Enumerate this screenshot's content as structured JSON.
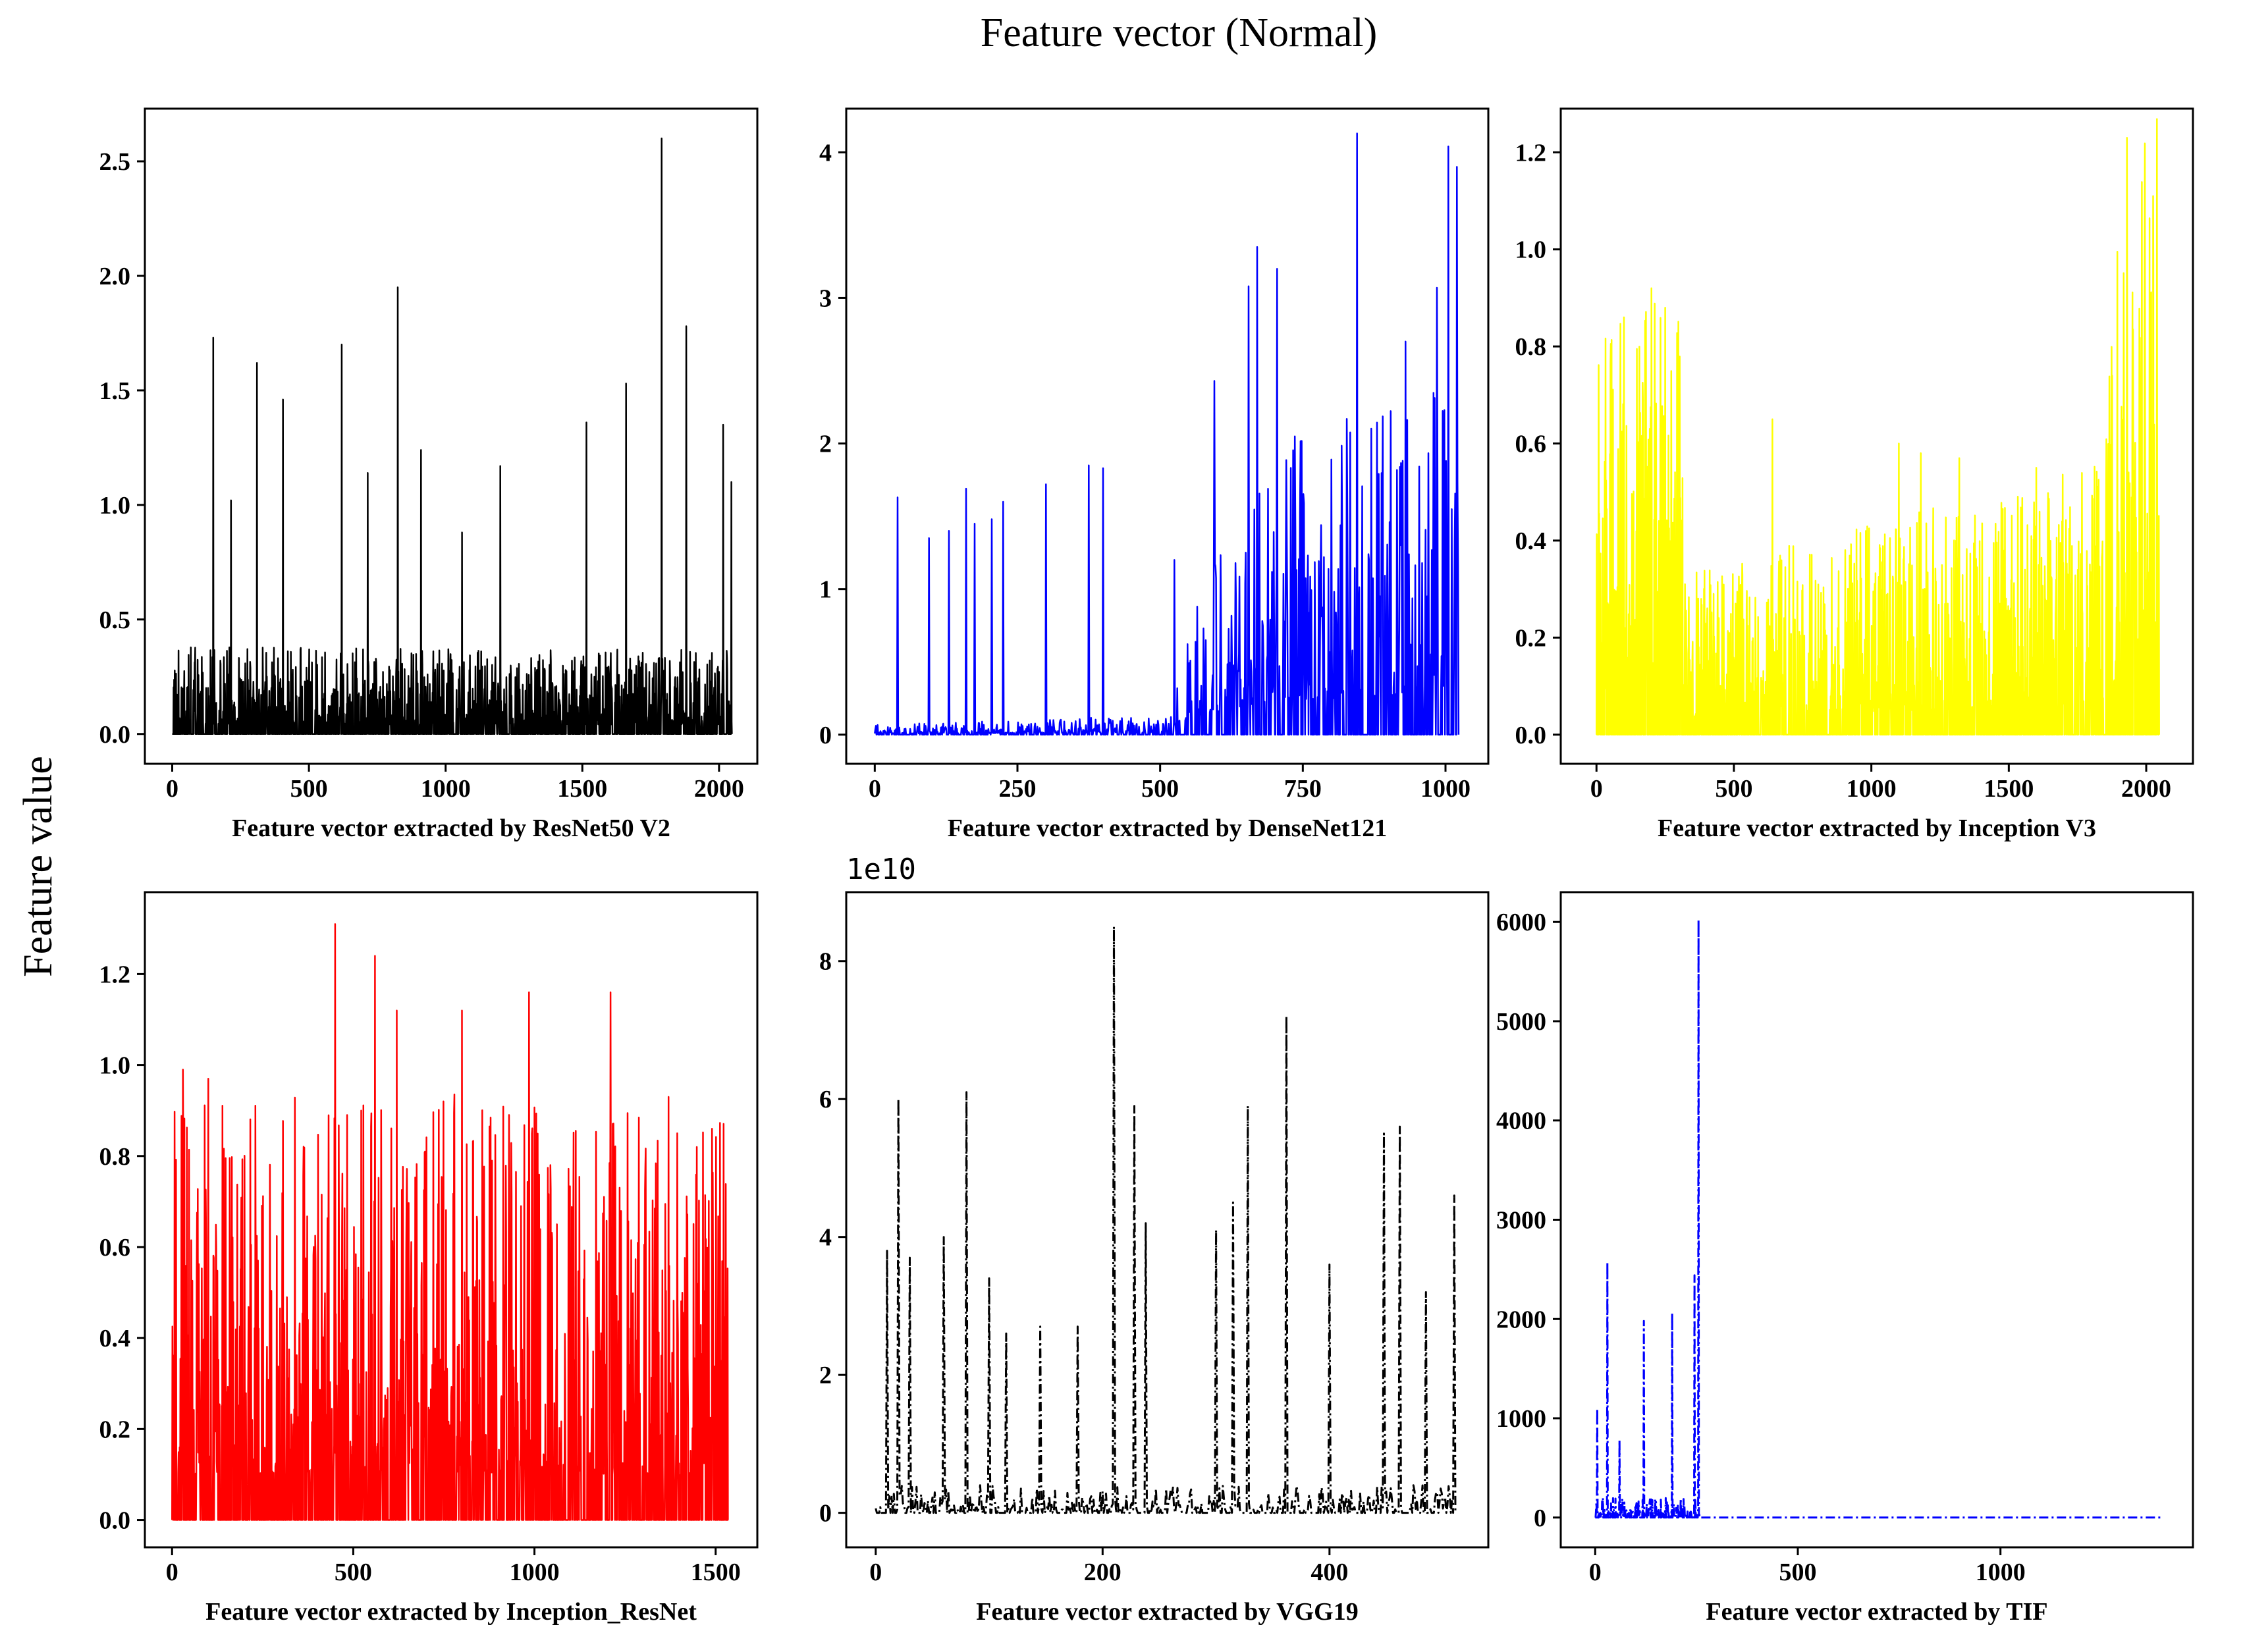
{
  "figure": {
    "title": "Feature vector (Normal)",
    "ylabel": "Feature value"
  },
  "chart_data": [
    {
      "type": "line",
      "id": "resnet50v2",
      "color": "#000000",
      "linestyle": "solid",
      "xlabel": "Feature vector extracted by ResNet50 V2",
      "n": 2048,
      "xlim": [
        -100,
        2140
      ],
      "ylim": [
        -0.13,
        2.73
      ],
      "xticks": [
        0,
        500,
        1000,
        1500,
        2000
      ],
      "xtick_labels": [
        "0",
        "500",
        "1000",
        "1500",
        "2000"
      ],
      "yticks": [
        0.0,
        0.5,
        1.0,
        1.5,
        2.0,
        2.5
      ],
      "ytick_labels": [
        "0.0",
        "0.5",
        "1.0",
        "1.5",
        "2.0",
        "2.5"
      ],
      "base": [
        {
          "x": 0,
          "v": 0.28
        },
        {
          "x": 1000,
          "v": 0.28
        },
        {
          "x": 2048,
          "v": 0.28
        }
      ],
      "peaks": [
        {
          "x": 150,
          "y": 1.73
        },
        {
          "x": 215,
          "y": 1.02
        },
        {
          "x": 310,
          "y": 1.62
        },
        {
          "x": 405,
          "y": 1.46
        },
        {
          "x": 620,
          "y": 1.7
        },
        {
          "x": 715,
          "y": 1.14
        },
        {
          "x": 825,
          "y": 1.95
        },
        {
          "x": 910,
          "y": 1.24
        },
        {
          "x": 1060,
          "y": 0.88
        },
        {
          "x": 1200,
          "y": 1.17
        },
        {
          "x": 1515,
          "y": 1.36
        },
        {
          "x": 1660,
          "y": 1.53
        },
        {
          "x": 1790,
          "y": 2.6
        },
        {
          "x": 1880,
          "y": 1.78
        },
        {
          "x": 2015,
          "y": 1.35
        },
        {
          "x": 2045,
          "y": 1.1
        }
      ]
    },
    {
      "type": "line",
      "id": "densenet121",
      "color": "#0000ff",
      "linestyle": "solid",
      "xlabel": "Feature vector extracted by DenseNet121",
      "n": 1024,
      "xlim": [
        -50,
        1075
      ],
      "ylim": [
        -0.2,
        4.3
      ],
      "xticks": [
        0,
        250,
        500,
        750,
        1000
      ],
      "xtick_labels": [
        "0",
        "250",
        "500",
        "750",
        "1000"
      ],
      "yticks": [
        0,
        1,
        2,
        3,
        4
      ],
      "ytick_labels": [
        "0",
        "1",
        "2",
        "3",
        "4"
      ],
      "base": [
        {
          "x": 0,
          "v": 0.05
        },
        {
          "x": 520,
          "v": 0.1
        },
        {
          "x": 570,
          "v": 0.9
        },
        {
          "x": 700,
          "v": 1.6
        },
        {
          "x": 1024,
          "v": 1.8
        }
      ],
      "peaks": [
        {
          "x": 40,
          "y": 1.63
        },
        {
          "x": 95,
          "y": 1.35
        },
        {
          "x": 130,
          "y": 1.4
        },
        {
          "x": 160,
          "y": 1.69
        },
        {
          "x": 175,
          "y": 1.45
        },
        {
          "x": 205,
          "y": 1.48
        },
        {
          "x": 225,
          "y": 1.6
        },
        {
          "x": 300,
          "y": 1.72
        },
        {
          "x": 375,
          "y": 1.85
        },
        {
          "x": 400,
          "y": 1.83
        },
        {
          "x": 525,
          "y": 1.2
        },
        {
          "x": 595,
          "y": 2.43
        },
        {
          "x": 655,
          "y": 3.08
        },
        {
          "x": 670,
          "y": 3.35
        },
        {
          "x": 705,
          "y": 3.2
        },
        {
          "x": 845,
          "y": 4.13
        },
        {
          "x": 930,
          "y": 2.7
        },
        {
          "x": 985,
          "y": 3.07
        },
        {
          "x": 1005,
          "y": 4.04
        },
        {
          "x": 1020,
          "y": 3.9
        }
      ]
    },
    {
      "type": "line",
      "id": "inceptionv3",
      "color": "#ffff00",
      "linestyle": "solid",
      "xlabel": "Feature vector extracted by Inception V3",
      "n": 2048,
      "xlim": [
        -130,
        2170
      ],
      "ylim": [
        -0.06,
        1.29
      ],
      "xticks": [
        0,
        500,
        1000,
        1500,
        2000
      ],
      "xtick_labels": [
        "0",
        "500",
        "1000",
        "1500",
        "2000"
      ],
      "yticks": [
        0.0,
        0.2,
        0.4,
        0.6,
        0.8,
        1.0,
        1.2
      ],
      "ytick_labels": [
        "0.0",
        "0.2",
        "0.4",
        "0.6",
        "0.8",
        "1.0",
        "1.2"
      ],
      "base": [
        {
          "x": 0,
          "v": 0.6
        },
        {
          "x": 300,
          "v": 0.7
        },
        {
          "x": 320,
          "v": 0.25
        },
        {
          "x": 1000,
          "v": 0.32
        },
        {
          "x": 1850,
          "v": 0.42
        },
        {
          "x": 1900,
          "v": 0.85
        },
        {
          "x": 2048,
          "v": 0.95
        }
      ],
      "peaks": [
        {
          "x": 100,
          "y": 0.86
        },
        {
          "x": 200,
          "y": 0.92
        },
        {
          "x": 250,
          "y": 0.88
        },
        {
          "x": 640,
          "y": 0.65
        },
        {
          "x": 1100,
          "y": 0.6
        },
        {
          "x": 1180,
          "y": 0.58
        },
        {
          "x": 1320,
          "y": 0.57
        },
        {
          "x": 1600,
          "y": 0.55
        },
        {
          "x": 1930,
          "y": 1.23
        },
        {
          "x": 2025,
          "y": 1.11
        }
      ]
    },
    {
      "type": "line",
      "id": "inception_resnet",
      "color": "#ff0000",
      "linestyle": "solid",
      "xlabel": "Feature vector extracted by Inception_ResNet",
      "n": 1536,
      "xlim": [
        -75,
        1615
      ],
      "ylim": [
        -0.06,
        1.38
      ],
      "xticks": [
        0,
        500,
        1000,
        1500
      ],
      "xtick_labels": [
        "0",
        "500",
        "1000",
        "1500"
      ],
      "yticks": [
        0.0,
        0.2,
        0.4,
        0.6,
        0.8,
        1.0,
        1.2
      ],
      "ytick_labels": [
        "0.0",
        "0.2",
        "0.4",
        "0.6",
        "0.8",
        "1.0",
        "1.2"
      ],
      "base": [
        {
          "x": 0,
          "v": 0.68
        },
        {
          "x": 750,
          "v": 0.7
        },
        {
          "x": 1536,
          "v": 0.65
        }
      ],
      "peaks": [
        {
          "x": 30,
          "y": 0.99
        },
        {
          "x": 100,
          "y": 0.97
        },
        {
          "x": 450,
          "y": 1.31
        },
        {
          "x": 560,
          "y": 1.24
        },
        {
          "x": 620,
          "y": 1.12
        },
        {
          "x": 800,
          "y": 1.12
        },
        {
          "x": 985,
          "y": 1.16
        },
        {
          "x": 1210,
          "y": 1.16
        },
        {
          "x": 1370,
          "y": 0.93
        },
        {
          "x": 1490,
          "y": 0.86
        }
      ]
    },
    {
      "type": "line",
      "id": "vgg19",
      "color": "#000000",
      "linestyle": "dashdot",
      "xlabel": "Feature vector extracted by VGG19",
      "offset_label": "1e10",
      "n": 512,
      "xlim": [
        -26,
        540
      ],
      "ylim": [
        -0.5,
        9.0
      ],
      "xticks": [
        0,
        200,
        400
      ],
      "xtick_labels": [
        "0",
        "200",
        "400"
      ],
      "yticks": [
        0,
        2,
        4,
        6,
        8
      ],
      "ytick_labels": [
        "0",
        "2",
        "4",
        "6",
        "8"
      ],
      "base": [
        {
          "x": 0,
          "v": 0.3
        },
        {
          "x": 512,
          "v": 0.3
        }
      ],
      "peaks": [
        {
          "x": 10,
          "y": 3.8
        },
        {
          "x": 20,
          "y": 6.0
        },
        {
          "x": 30,
          "y": 3.7
        },
        {
          "x": 60,
          "y": 4.0
        },
        {
          "x": 80,
          "y": 6.1
        },
        {
          "x": 100,
          "y": 3.4
        },
        {
          "x": 115,
          "y": 2.6
        },
        {
          "x": 145,
          "y": 2.7
        },
        {
          "x": 178,
          "y": 2.7
        },
        {
          "x": 210,
          "y": 8.5
        },
        {
          "x": 228,
          "y": 5.9
        },
        {
          "x": 238,
          "y": 4.2
        },
        {
          "x": 300,
          "y": 4.1
        },
        {
          "x": 315,
          "y": 4.5
        },
        {
          "x": 328,
          "y": 5.9
        },
        {
          "x": 362,
          "y": 7.2
        },
        {
          "x": 400,
          "y": 3.6
        },
        {
          "x": 448,
          "y": 5.5
        },
        {
          "x": 462,
          "y": 5.6
        },
        {
          "x": 485,
          "y": 3.2
        },
        {
          "x": 510,
          "y": 4.6
        }
      ]
    },
    {
      "type": "line",
      "id": "tif",
      "color": "#0000ff",
      "linestyle": "dashdot",
      "xlabel": "Feature vector extracted by TIF",
      "n": 1400,
      "xlim": [
        -85,
        1475
      ],
      "ylim": [
        -300,
        6300
      ],
      "xticks": [
        0,
        500,
        1000
      ],
      "xtick_labels": [
        "0",
        "500",
        "1000"
      ],
      "yticks": [
        0,
        1000,
        2000,
        3000,
        4000,
        5000,
        6000
      ],
      "ytick_labels": [
        "0",
        "1000",
        "2000",
        "3000",
        "4000",
        "5000",
        "6000"
      ],
      "base": [
        {
          "x": 0,
          "v": 150
        },
        {
          "x": 250,
          "v": 150
        },
        {
          "x": 260,
          "v": 0
        },
        {
          "x": 1400,
          "v": 0
        }
      ],
      "peaks": [
        {
          "x": 5,
          "y": 1100
        },
        {
          "x": 30,
          "y": 2570
        },
        {
          "x": 60,
          "y": 780
        },
        {
          "x": 120,
          "y": 1980
        },
        {
          "x": 190,
          "y": 2060
        },
        {
          "x": 245,
          "y": 2440
        },
        {
          "x": 255,
          "y": 6020
        }
      ]
    }
  ]
}
